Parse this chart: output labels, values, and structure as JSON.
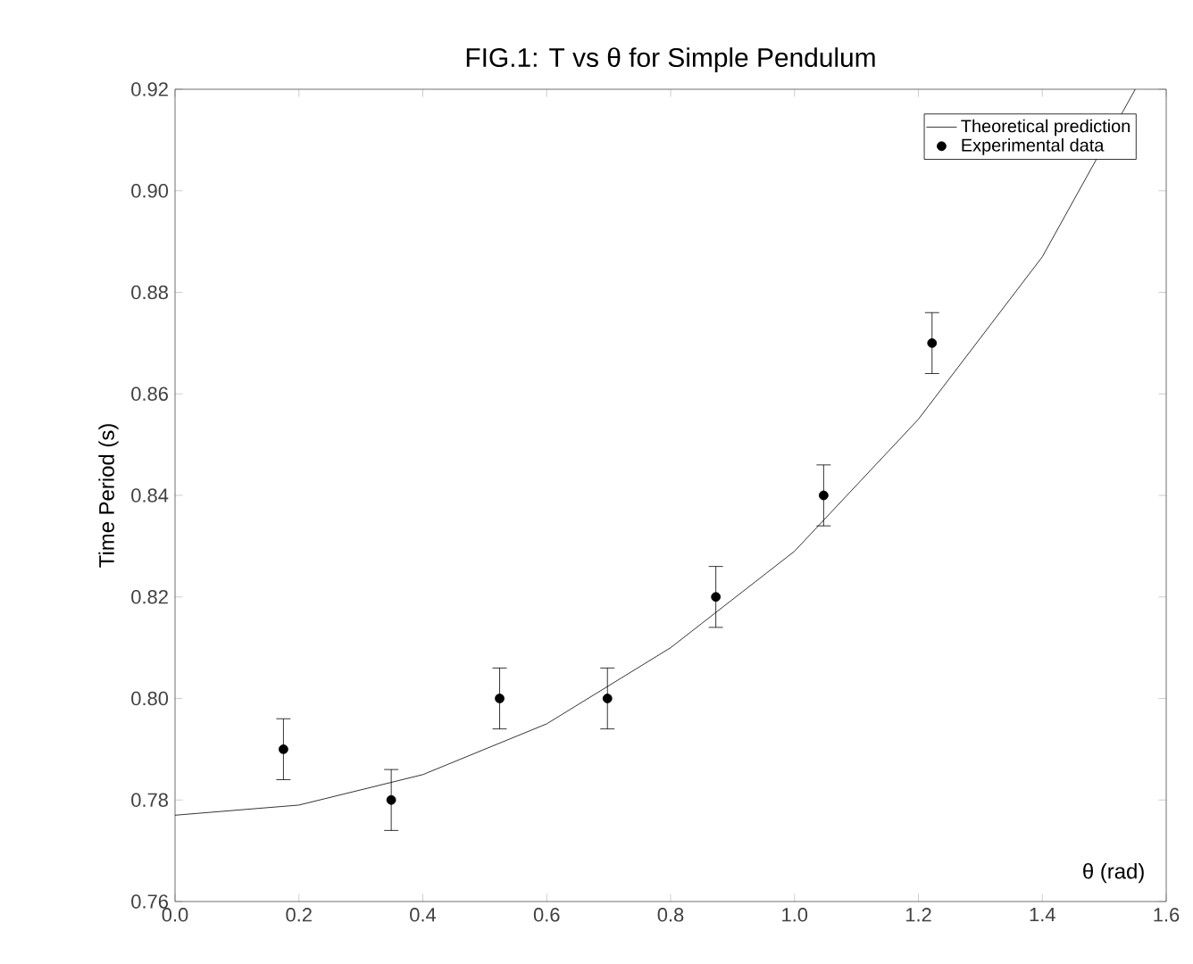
{
  "chart_data": {
    "type": "scatter",
    "title": "FIG.1: T vs θ for Simple Pendulum",
    "xlabel": "θ (rad)",
    "ylabel": "Time Period (s)",
    "xlim": [
      0,
      1.6
    ],
    "ylim": [
      0.76,
      0.92
    ],
    "xticks": [
      {
        "value": 0,
        "label": "0.0"
      },
      0.2,
      0.4,
      0.6,
      0.8,
      {
        "value": 1,
        "label": "1.0"
      },
      1.2,
      1.4,
      1.6
    ],
    "yticks": [
      0.76,
      0.78,
      {
        "value": 0.8,
        "label": "0.80"
      },
      0.82,
      0.84,
      0.86,
      0.88,
      {
        "value": 0.9,
        "label": "0.90"
      },
      0.92
    ],
    "legend": "top right",
    "grid": false,
    "series": [
      {
        "name": "Theoretical prediction",
        "type": "line",
        "color": "#000000",
        "marker": "none",
        "x": [
          0,
          0.2,
          0.4,
          0.6,
          0.8,
          1.0,
          1.2,
          1.4,
          1.55
        ],
        "values": [
          0.777,
          0.779,
          0.785,
          0.795,
          0.81,
          0.829,
          0.855,
          0.887,
          0.92
        ]
      },
      {
        "name": "Experimental data",
        "color": "#000000",
        "marker": "circle",
        "x": [
          0.175,
          0.349,
          0.524,
          0.698,
          0.873,
          1.047,
          1.222
        ],
        "values": [
          0.79,
          0.78,
          0.8,
          0.8,
          0.82,
          0.84,
          0.87
        ],
        "errors": [
          0.006,
          0.006,
          0.006,
          0.006,
          0.006,
          0.006,
          0.006
        ]
      }
    ]
  }
}
